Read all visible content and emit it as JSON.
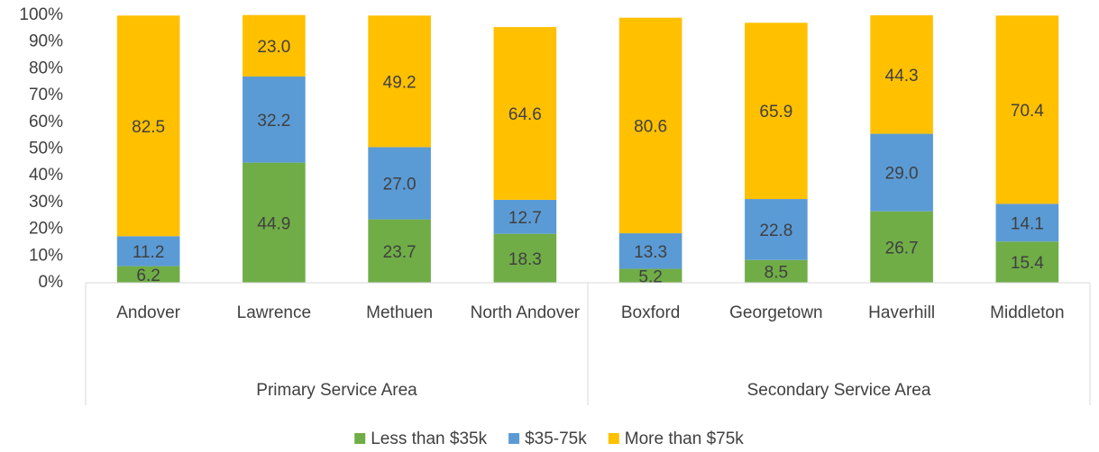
{
  "chart_data": {
    "type": "stacked_bar",
    "categories": [
      "Andover",
      "Lawrence",
      "Methuen",
      "North Andover",
      "Boxford",
      "Georgetown",
      "Haverhill",
      "Middleton"
    ],
    "groups": [
      {
        "label": "Primary Service Area",
        "size": 4
      },
      {
        "label": "Secondary Service Area",
        "size": 4
      }
    ],
    "series": [
      {
        "name": "Less than $35k",
        "color": "#70ad47",
        "values": [
          6.2,
          44.9,
          23.7,
          18.3,
          5.2,
          8.5,
          26.7,
          15.4
        ],
        "value_labels": [
          "6.2",
          "44.9",
          "23.7",
          "18.3",
          "5.2",
          "8.5",
          "26.7",
          "15.4"
        ]
      },
      {
        "name": "$35-75k",
        "color": "#5b9bd5",
        "values": [
          11.2,
          32.2,
          27.0,
          12.7,
          13.3,
          22.8,
          29.0,
          14.1
        ],
        "value_labels": [
          "11.2",
          "32.2",
          "27.0",
          "12.7",
          "13.3",
          "22.8",
          "29.0",
          "14.1"
        ]
      },
      {
        "name": "More than $75k",
        "color": "#ffc000",
        "values": [
          82.5,
          23.0,
          49.2,
          64.6,
          80.6,
          65.9,
          44.3,
          70.4
        ],
        "value_labels": [
          "82.5",
          "23.0",
          "49.2",
          "64.6",
          "80.6",
          "65.9",
          "44.3",
          "70.4"
        ]
      }
    ],
    "ylim": [
      0,
      100
    ],
    "yticks": [
      {
        "value": 0,
        "label": "0%"
      },
      {
        "value": 10,
        "label": "10%"
      },
      {
        "value": 20,
        "label": "20%"
      },
      {
        "value": 30,
        "label": "30%"
      },
      {
        "value": 40,
        "label": "40%"
      },
      {
        "value": 50,
        "label": "50%"
      },
      {
        "value": 60,
        "label": "60%"
      },
      {
        "value": 70,
        "label": "70%"
      },
      {
        "value": 80,
        "label": "80%"
      },
      {
        "value": 90,
        "label": "90%"
      },
      {
        "value": 100,
        "label": "100%"
      }
    ],
    "legend": "bottom"
  }
}
